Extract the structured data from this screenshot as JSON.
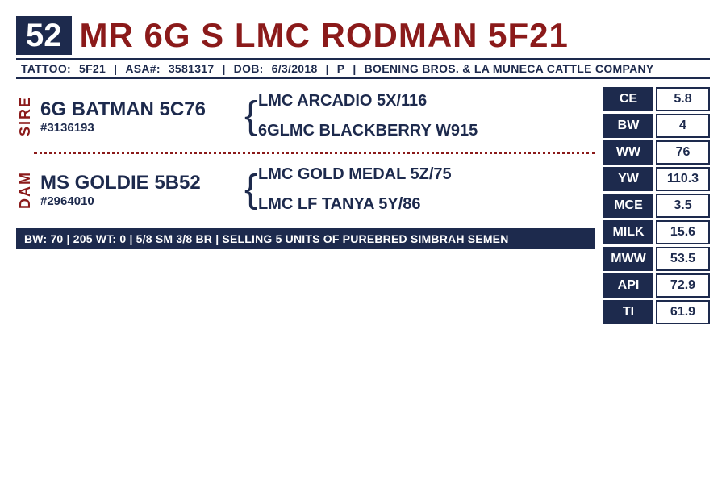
{
  "lot": "52",
  "name": "MR 6G S LMC RODMAN  5F21",
  "info": {
    "tattoo_label": "TATTOO:",
    "tattoo": "5F21",
    "asa_label": "ASA#:",
    "asa": "3581317",
    "dob_label": "DOB:",
    "dob": "6/3/2018",
    "status": "P",
    "owner": "BOENING BROS. & LA MUNECA CATTLE COMPANY"
  },
  "sire": {
    "label": "SIRE",
    "name": "6G BATMAN 5C76",
    "reg": "#3136193",
    "gp1": "LMC ARCADIO 5X/116",
    "gp2": "6GLMC BLACKBERRY W915"
  },
  "dam": {
    "label": "DAM",
    "name": "MS GOLDIE  5B52",
    "reg": "#2964010",
    "gp1": "LMC GOLD MEDAL 5Z/75",
    "gp2": "LMC LF TANYA 5Y/86"
  },
  "sale": {
    "bw_label": "BW:",
    "bw": "70",
    "wt_label": "205 WT:",
    "wt": "0",
    "breed": "5/8 SM 3/8 BR",
    "note": "SELLING 5 UNITS OF PUREBRED SIMBRAH SEMEN"
  },
  "epds": [
    {
      "label": "CE",
      "value": "5.8"
    },
    {
      "label": "BW",
      "value": "4"
    },
    {
      "label": "WW",
      "value": "76"
    },
    {
      "label": "YW",
      "value": "110.3"
    },
    {
      "label": "MCE",
      "value": "3.5"
    },
    {
      "label": "MILK",
      "value": "15.6"
    },
    {
      "label": "MWW",
      "value": "53.5"
    },
    {
      "label": "API",
      "value": "72.9"
    },
    {
      "label": "TI",
      "value": "61.9"
    }
  ],
  "colors": {
    "navy": "#1d2a4d",
    "maroon": "#8b1a1a",
    "white": "#ffffff"
  }
}
